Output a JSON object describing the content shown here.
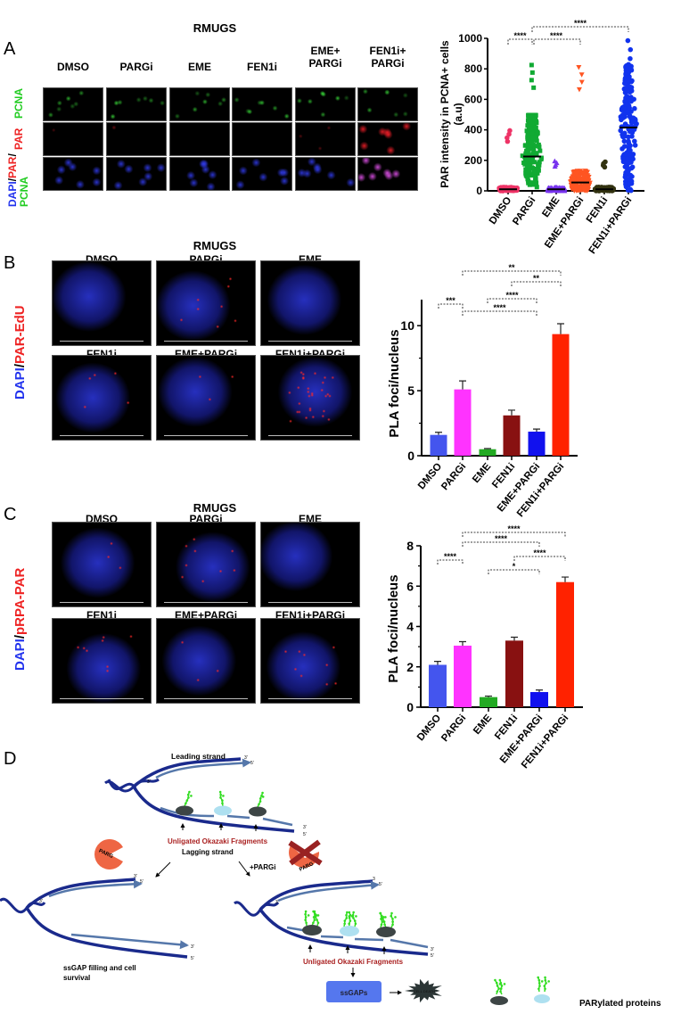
{
  "panel_a": {
    "letter": "A",
    "title": "RMUGS",
    "columns": [
      "DMSO",
      "PARGi",
      "EME",
      "FEN1i",
      "EME+\nPARGi",
      "FEN1i+\nPARGi"
    ],
    "row_labels": {
      "pcna": "PCNA",
      "par": "PAR",
      "merge_dapi": "DAPI",
      "merge_sep1": "/",
      "merge_par": "PAR",
      "merge_sep2": "/",
      "merge_pcna": "PCNA"
    }
  },
  "panel_b": {
    "letter": "B",
    "title": "RMUGS",
    "columns_row1": [
      "DMSO",
      "PARGi",
      "EME"
    ],
    "columns_row2": [
      "FEN1i",
      "EME+PARGi",
      "FEN1i+PARGi"
    ],
    "row_label_dapi": "DAPI",
    "row_label_sep": "/",
    "row_label_stain": "PAR-EdU"
  },
  "panel_c": {
    "letter": "C",
    "title": "RMUGS",
    "columns_row1": [
      "DMSO",
      "PARGi",
      "EME"
    ],
    "columns_row2": [
      "FEN1i",
      "EME+PARGi",
      "FEN1i+PARGi"
    ],
    "row_label_dapi": "DAPI",
    "row_label_sep": "/",
    "row_label_stain": "pRPA-PAR"
  },
  "panel_d": {
    "letter": "D",
    "leading_strand": "Leading strand",
    "lagging_strand": "Lagging strand",
    "unligated_top": "Unligated Okazaki Fragments",
    "unligated_bottom": "Unligated Okazaki Fragments",
    "parg": "PARG",
    "pargi": "+PARGi",
    "ssgap_line1": "ssGAP filling and cell",
    "ssgap_line2": "survival",
    "ssgaps_box": "ssGAPs",
    "cell_death": "CELL DEATH",
    "legend": "PARylated proteins",
    "three_prime": "3'",
    "five_prime": "5'",
    "three_plain": "3",
    "colors": {
      "strand": "#1a2a8c",
      "nascent": "#5577aa",
      "parg": "#ee6644",
      "label_red": "#aa2222",
      "par_chain": "#33dd22",
      "ssgaps": "#5577ee"
    }
  },
  "chart_data": [
    {
      "type": "scatter",
      "ylabel": "PAR intensity in PCNA+ cells\n(a.u)",
      "ylim": [
        0,
        1000
      ],
      "yticks": [
        "0",
        "200",
        "400",
        "600",
        "800",
        "1000"
      ],
      "categories": [
        "DMSO",
        "PARGi",
        "EME",
        "EME+PARGi",
        "FEN1i",
        "FEN1i+PARGi"
      ],
      "medians": [
        10,
        225,
        10,
        55,
        10,
        415
      ],
      "max_values": [
        395,
        825,
        195,
        810,
        190,
        985
      ],
      "colors": [
        "#ee3366",
        "#11aa33",
        "#7733ee",
        "#ff5522",
        "#333311",
        "#1133ee"
      ],
      "markers": [
        "circle",
        "square",
        "triangle",
        "triangle-down",
        "circle",
        "circle"
      ],
      "significance": [
        {
          "from": "DMSO",
          "to": "PARGi",
          "label": "****"
        },
        {
          "from": "PARGi",
          "to": "EME+PARGi",
          "label": "****"
        },
        {
          "from": "PARGi",
          "to": "FEN1i+PARGi",
          "label": "****"
        }
      ]
    },
    {
      "type": "bar",
      "ylabel": "PLA foci/nucleus",
      "ylim": [
        0,
        12
      ],
      "yticks": [
        "0",
        "5",
        "10"
      ],
      "categories": [
        "DMSO",
        "PARGi",
        "EME",
        "FEN1i",
        "EME+PARGi",
        "FEN1i+PARGi"
      ],
      "values": [
        1.6,
        5.1,
        0.5,
        3.1,
        1.85,
        9.35
      ],
      "errors": [
        0.2,
        0.65,
        0.05,
        0.4,
        0.2,
        0.8
      ],
      "colors": [
        "#4455ee",
        "#ff33ff",
        "#22aa22",
        "#881111",
        "#1111ee",
        "#ff2200"
      ],
      "significance": [
        {
          "from": "PARGi",
          "to": "FEN1i+PARGi",
          "label": "**"
        },
        {
          "from": "FEN1i",
          "to": "FEN1i+PARGi",
          "label": "**"
        },
        {
          "from": "DMSO",
          "to": "PARGi",
          "label": "***"
        },
        {
          "from": "EME",
          "to": "EME+PARGi",
          "label": "****"
        },
        {
          "from": "PARGi",
          "to": "EME+PARGi",
          "label": "****"
        }
      ]
    },
    {
      "type": "bar",
      "ylabel": "PLA foci/nucleus",
      "ylim": [
        0,
        8
      ],
      "yticks": [
        "0",
        "2",
        "4",
        "6",
        "8"
      ],
      "categories": [
        "DMSO",
        "PARGi",
        "EME",
        "FEN1i",
        "EME+PARGi",
        "FEN1i+PARGi"
      ],
      "values": [
        2.1,
        3.05,
        0.5,
        3.3,
        0.75,
        6.2
      ],
      "errors": [
        0.17,
        0.2,
        0.05,
        0.17,
        0.1,
        0.25
      ],
      "colors": [
        "#4455ee",
        "#ff33ff",
        "#22aa22",
        "#881111",
        "#1111ee",
        "#ff2200"
      ],
      "significance": [
        {
          "from": "PARGi",
          "to": "FEN1i+PARGi",
          "label": "****"
        },
        {
          "from": "PARGi",
          "to": "EME+PARGi",
          "label": "****"
        },
        {
          "from": "DMSO",
          "to": "PARGi",
          "label": "****"
        },
        {
          "from": "FEN1i",
          "to": "FEN1i+PARGi",
          "label": "****"
        },
        {
          "from": "EME",
          "to": "EME+PARGi",
          "label": "*"
        }
      ]
    }
  ]
}
